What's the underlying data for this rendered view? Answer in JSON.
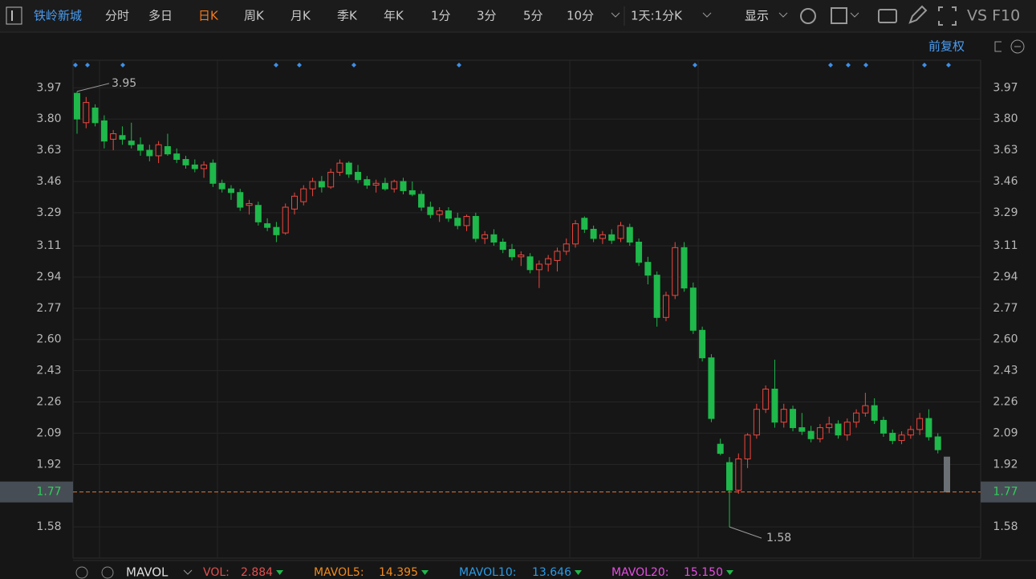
{
  "toolbar": {
    "stock": "铁岭新城",
    "tabs": [
      "分时",
      "多日",
      "日K",
      "周K",
      "月K",
      "季K",
      "年K",
      "1分",
      "3分",
      "5分",
      "10分"
    ],
    "period": "1天:1分K",
    "display": "显示",
    "extra": "VS F10"
  },
  "adjust": "前复权",
  "chart_data": {
    "type": "candlestick",
    "up_color": "#f0463f",
    "down_color": "#1fb84b",
    "current_color": "#6b7075",
    "open": [
      3.94,
      3.78,
      3.86,
      3.79,
      3.69,
      3.71,
      3.68,
      3.66,
      3.63,
      3.6,
      3.65,
      3.61,
      3.58,
      3.55,
      3.53,
      3.56,
      3.45,
      3.42,
      3.4,
      3.33,
      3.33,
      3.23,
      3.21,
      3.18,
      3.31,
      3.35,
      3.42,
      3.46,
      3.43,
      3.51,
      3.56,
      3.51,
      3.47,
      3.44,
      3.45,
      3.42,
      3.46,
      3.41,
      3.39,
      3.32,
      3.28,
      3.3,
      3.26,
      3.22,
      3.27,
      3.15,
      3.17,
      3.13,
      3.09,
      3.05,
      3.05,
      2.98,
      3.01,
      3.03,
      3.08,
      3.12,
      3.26,
      3.2,
      3.15,
      3.17,
      3.15,
      3.21,
      3.13,
      3.02,
      2.95,
      2.72,
      2.84,
      3.1,
      2.88,
      2.65,
      2.5,
      2.03,
      1.93,
      1.78,
      1.95,
      2.08,
      2.22,
      2.33,
      2.15,
      2.22,
      2.12,
      2.1,
      2.06,
      2.12,
      2.14,
      2.08,
      2.15,
      2.2,
      2.24,
      2.16,
      2.09,
      2.05,
      2.08,
      2.11,
      2.17,
      2.07,
      1.96
    ],
    "high": [
      3.95,
      3.92,
      3.88,
      3.82,
      3.74,
      3.76,
      3.78,
      3.7,
      3.66,
      3.68,
      3.72,
      3.64,
      3.6,
      3.58,
      3.57,
      3.58,
      3.47,
      3.44,
      3.42,
      3.36,
      3.35,
      3.26,
      3.24,
      3.34,
      3.4,
      3.44,
      3.48,
      3.49,
      3.53,
      3.58,
      3.57,
      3.55,
      3.49,
      3.47,
      3.48,
      3.47,
      3.48,
      3.46,
      3.41,
      3.35,
      3.32,
      3.32,
      3.29,
      3.28,
      3.29,
      3.19,
      3.2,
      3.15,
      3.12,
      3.08,
      3.07,
      3.03,
      3.06,
      3.1,
      3.15,
      3.25,
      3.27,
      3.22,
      3.19,
      3.2,
      3.24,
      3.23,
      3.15,
      3.05,
      2.97,
      2.86,
      3.13,
      3.13,
      2.91,
      2.67,
      2.52,
      2.06,
      1.96,
      1.98,
      2.09,
      2.25,
      2.35,
      2.49,
      2.25,
      2.24,
      2.2,
      2.13,
      2.14,
      2.18,
      2.16,
      2.17,
      2.22,
      2.31,
      2.28,
      2.18,
      2.11,
      2.1,
      2.13,
      2.2,
      2.22,
      2.09,
      1.96
    ],
    "low": [
      3.72,
      3.75,
      3.76,
      3.64,
      3.63,
      3.66,
      3.64,
      3.6,
      3.57,
      3.56,
      3.6,
      3.56,
      3.53,
      3.51,
      3.48,
      3.43,
      3.4,
      3.36,
      3.3,
      3.28,
      3.22,
      3.19,
      3.13,
      3.17,
      3.28,
      3.33,
      3.38,
      3.4,
      3.42,
      3.49,
      3.48,
      3.45,
      3.42,
      3.4,
      3.41,
      3.4,
      3.39,
      3.38,
      3.3,
      3.26,
      3.24,
      3.24,
      3.2,
      3.19,
      3.13,
      3.12,
      3.11,
      3.07,
      3.03,
      3.0,
      2.96,
      2.88,
      2.97,
      2.97,
      3.06,
      3.1,
      3.18,
      3.13,
      3.12,
      3.12,
      3.13,
      3.11,
      3.0,
      2.9,
      2.67,
      2.7,
      2.82,
      2.86,
      2.63,
      2.48,
      2.15,
      1.97,
      1.58,
      1.76,
      1.9,
      2.06,
      2.2,
      2.12,
      2.12,
      2.1,
      2.08,
      2.04,
      2.04,
      2.09,
      2.06,
      2.05,
      2.12,
      2.18,
      2.14,
      2.07,
      2.03,
      2.03,
      2.06,
      2.08,
      2.05,
      1.98,
      1.77
    ],
    "close": [
      3.8,
      3.89,
      3.78,
      3.68,
      3.72,
      3.69,
      3.66,
      3.63,
      3.6,
      3.66,
      3.61,
      3.58,
      3.55,
      3.53,
      3.55,
      3.45,
      3.42,
      3.4,
      3.32,
      3.34,
      3.24,
      3.21,
      3.17,
      3.32,
      3.38,
      3.42,
      3.46,
      3.43,
      3.51,
      3.56,
      3.5,
      3.47,
      3.44,
      3.45,
      3.42,
      3.46,
      3.41,
      3.39,
      3.32,
      3.28,
      3.3,
      3.26,
      3.22,
      3.27,
      3.15,
      3.17,
      3.13,
      3.09,
      3.05,
      3.06,
      2.98,
      3.01,
      3.04,
      3.08,
      3.12,
      3.23,
      3.2,
      3.15,
      3.17,
      3.14,
      3.22,
      3.13,
      3.02,
      2.95,
      2.72,
      2.84,
      3.1,
      2.88,
      2.65,
      2.5,
      2.17,
      1.98,
      1.78,
      1.95,
      2.08,
      2.22,
      2.33,
      2.15,
      2.22,
      2.12,
      2.1,
      2.06,
      2.12,
      2.14,
      2.08,
      2.15,
      2.2,
      2.24,
      2.16,
      2.09,
      2.05,
      2.08,
      2.11,
      2.17,
      2.07,
      2.0,
      1.77
    ],
    "ylim": [
      1.41,
      4.12
    ],
    "yticks": [
      3.97,
      {
        "value": 3.8,
        "label": "3.80"
      },
      3.63,
      3.46,
      3.29,
      3.11,
      2.94,
      2.77,
      {
        "value": 2.6,
        "label": "2.60"
      },
      2.43,
      2.26,
      2.09,
      1.92,
      1.58
    ],
    "last_price": 1.77,
    "max_label": 3.95,
    "min_label": 1.58,
    "grid": true
  },
  "indicator_bar": {
    "name": "MAVOL",
    "items": [
      {
        "label": "VOL:",
        "value": "2.884",
        "color": "#e0504f"
      },
      {
        "label": "MAVOL5:",
        "value": "14.395",
        "color": "#f08a1c"
      },
      {
        "label": "MAVOL10:",
        "value": "13.646",
        "color": "#2a9be6"
      },
      {
        "label": "MAVOL20:",
        "value": "15.150",
        "color": "#e44ee0"
      }
    ]
  }
}
